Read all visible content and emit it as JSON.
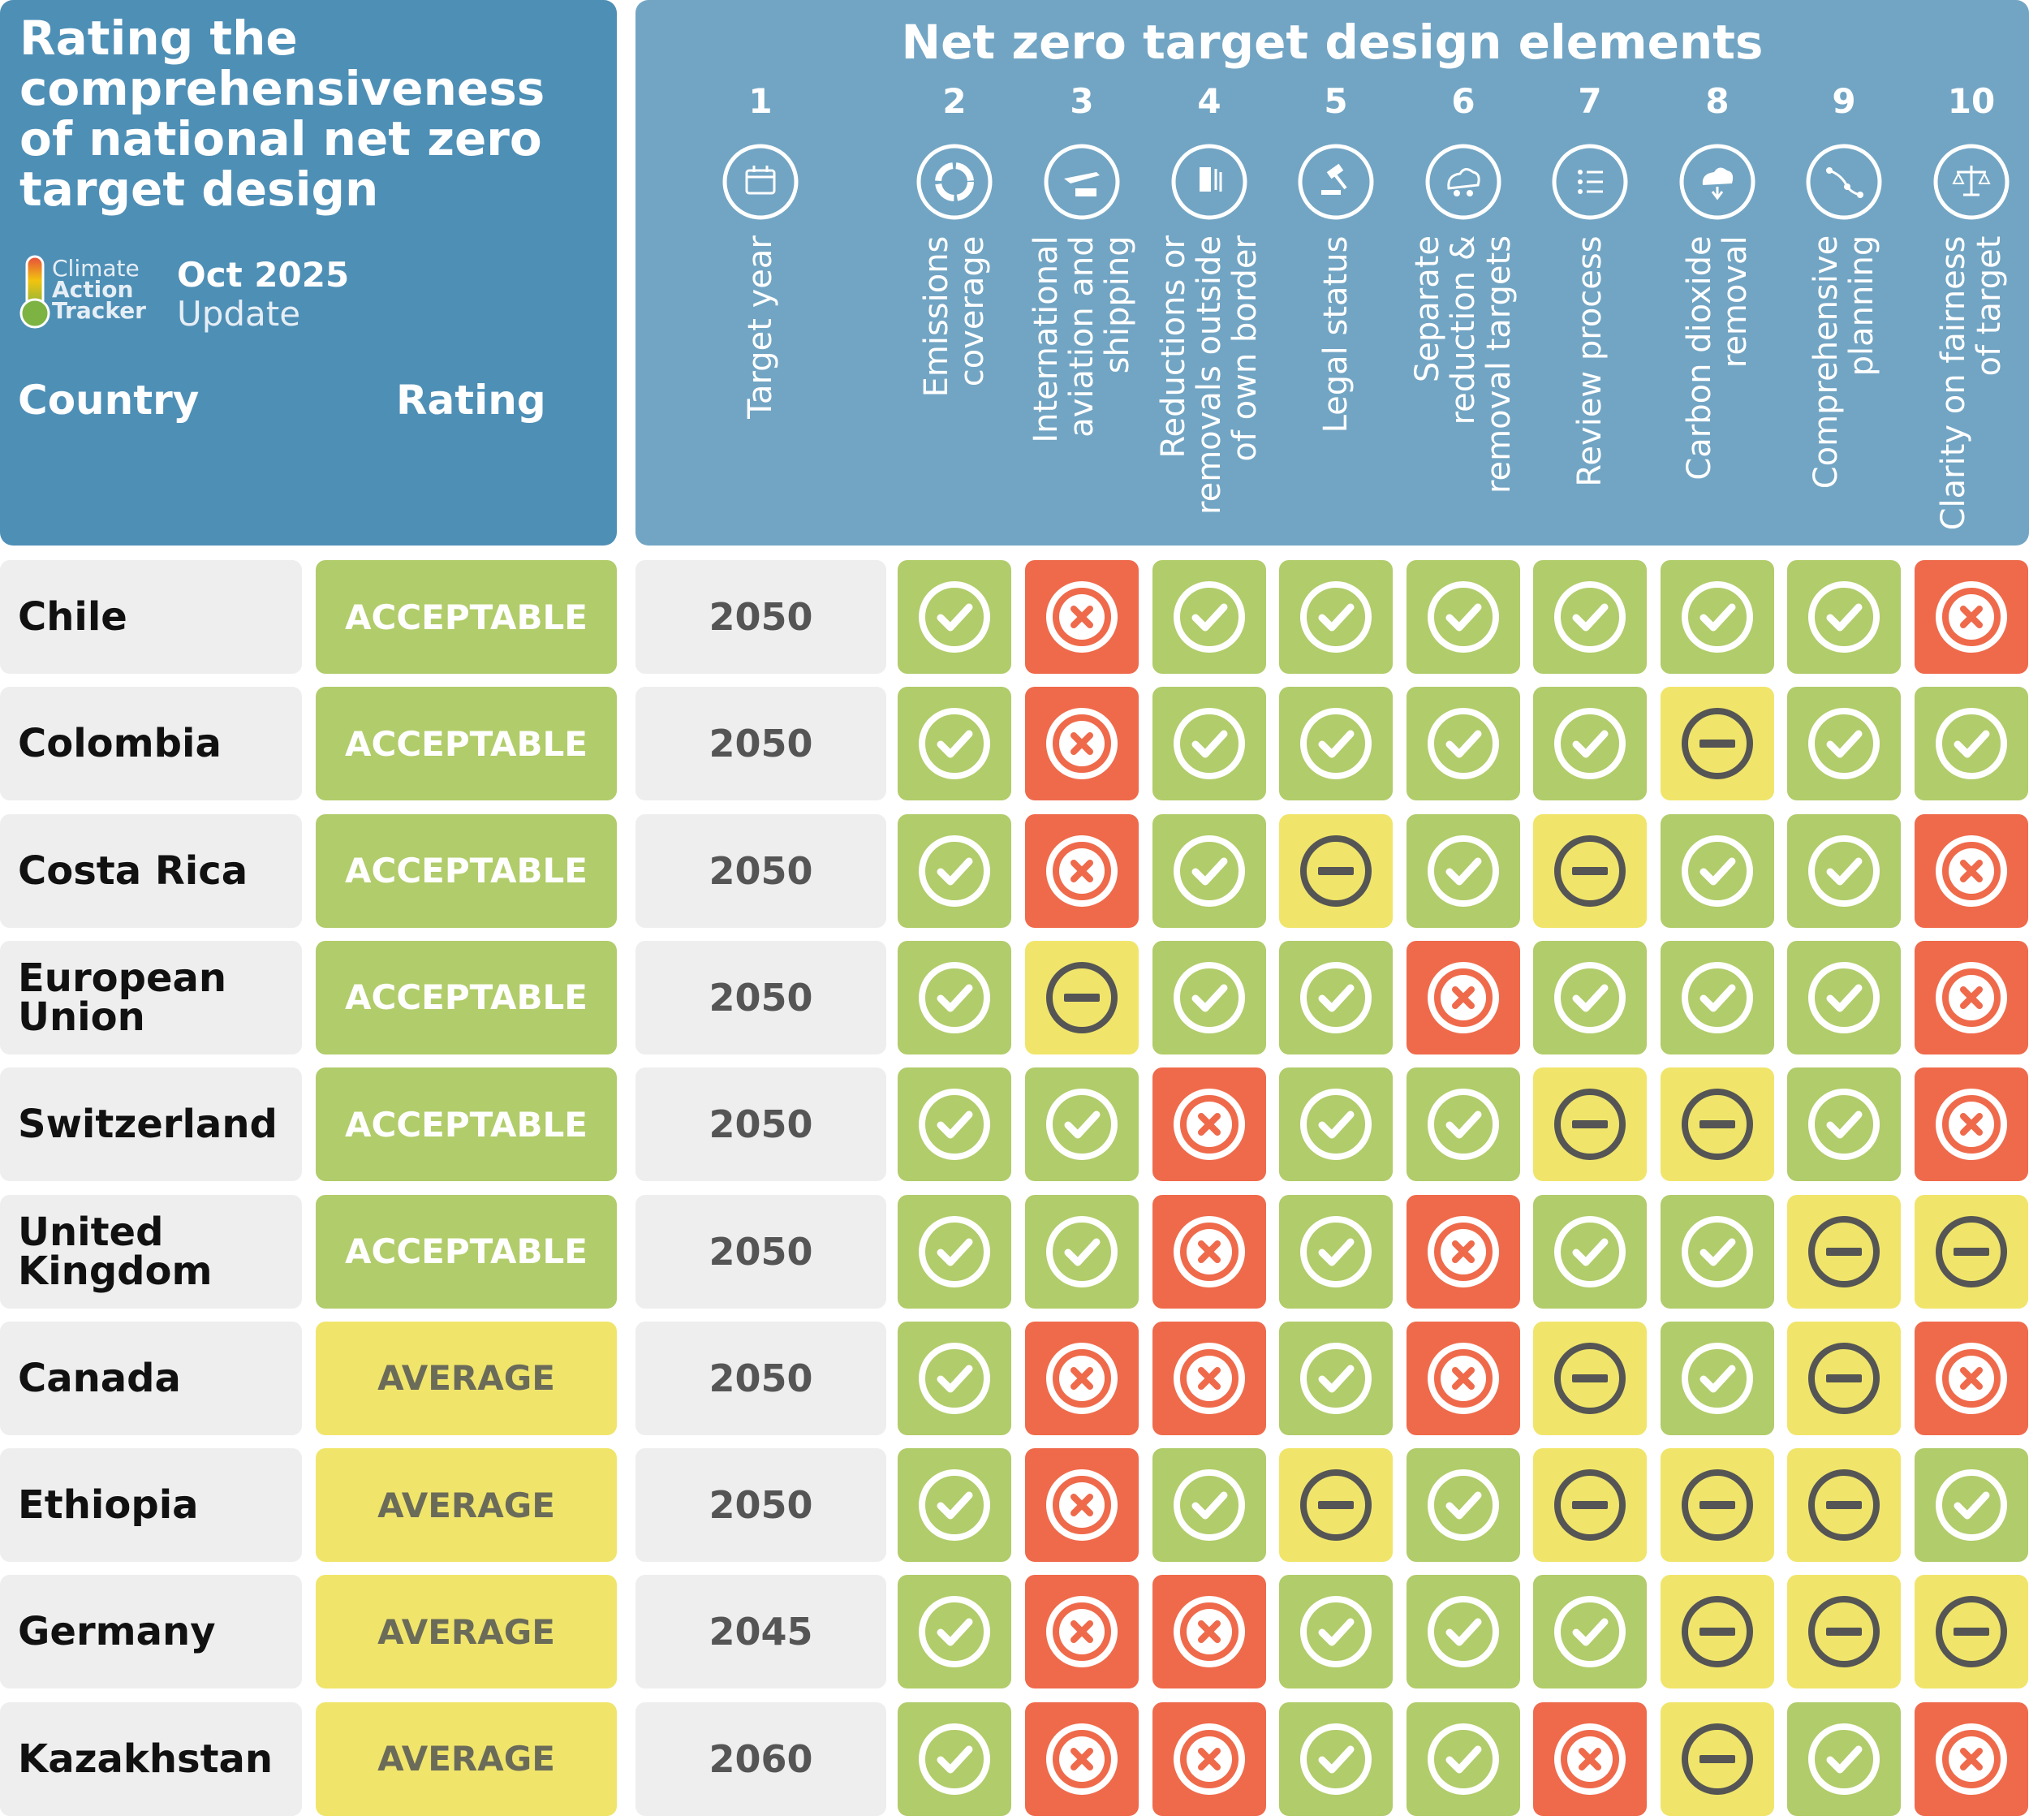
{
  "header": {
    "title": "Rating the comprehensiveness of national net zero target design",
    "brand_lines": [
      "Climate",
      "Action",
      "Tracker"
    ],
    "date_line1": "Oct 2025",
    "date_line2": "Update",
    "country_label": "Country",
    "rating_label": "Rating",
    "elements_title": "Net zero target design elements"
  },
  "colors": {
    "header_left": "#4e8fb6",
    "header_right": "#72a5c4",
    "good": "#b1cc6a",
    "medium": "#f0e56a",
    "bad": "#ef6a4b",
    "neutral": "#eeeeee"
  },
  "chart_data": {
    "type": "table",
    "title": "Rating the comprehensiveness of national net zero target design",
    "legend": {
      "good": "check",
      "medium": "dash",
      "bad": "cross"
    },
    "elements": [
      {
        "num": "1",
        "label": "Target year",
        "icon": "calendar-icon"
      },
      {
        "num": "2",
        "label": "Emissions coverage",
        "icon": "donut-chart-icon"
      },
      {
        "num": "3",
        "label": "International aviation and shipping",
        "icon": "plane-ship-icon"
      },
      {
        "num": "4",
        "label": "Reductions or removals outside of own border",
        "icon": "building-arrows-icon"
      },
      {
        "num": "5",
        "label": "Legal status",
        "icon": "gavel-icon"
      },
      {
        "num": "6",
        "label": "Separate reduction & removal targets",
        "icon": "ghg-cdr-cloud-icon"
      },
      {
        "num": "7",
        "label": "Review process",
        "icon": "review-list-icon"
      },
      {
        "num": "8",
        "label": "Carbon dioxide removal",
        "icon": "co2-cloud-icon"
      },
      {
        "num": "9",
        "label": "Comprehensive planning",
        "icon": "planning-path-icon"
      },
      {
        "num": "10",
        "label": "Clarity on fairness of target",
        "icon": "scales-icon"
      }
    ],
    "rows": [
      {
        "country": "Chile",
        "rating": "ACCEPTABLE",
        "target_year": "2050",
        "marks": [
          "good",
          "bad",
          "good",
          "good",
          "good",
          "good",
          "good",
          "good",
          "bad"
        ]
      },
      {
        "country": "Colombia",
        "rating": "ACCEPTABLE",
        "target_year": "2050",
        "marks": [
          "good",
          "bad",
          "good",
          "good",
          "good",
          "good",
          "medium",
          "good",
          "good"
        ]
      },
      {
        "country": "Costa Rica",
        "rating": "ACCEPTABLE",
        "target_year": "2050",
        "marks": [
          "good",
          "bad",
          "good",
          "medium",
          "good",
          "medium",
          "good",
          "good",
          "bad"
        ]
      },
      {
        "country": "European Union",
        "rating": "ACCEPTABLE",
        "target_year": "2050",
        "marks": [
          "good",
          "medium",
          "good",
          "good",
          "bad",
          "good",
          "good",
          "good",
          "bad"
        ]
      },
      {
        "country": "Switzerland",
        "rating": "ACCEPTABLE",
        "target_year": "2050",
        "marks": [
          "good",
          "good",
          "bad",
          "good",
          "good",
          "medium",
          "medium",
          "good",
          "bad"
        ]
      },
      {
        "country": "United Kingdom",
        "rating": "ACCEPTABLE",
        "target_year": "2050",
        "marks": [
          "good",
          "good",
          "bad",
          "good",
          "bad",
          "good",
          "good",
          "medium",
          "medium"
        ]
      },
      {
        "country": "Canada",
        "rating": "AVERAGE",
        "target_year": "2050",
        "marks": [
          "good",
          "bad",
          "bad",
          "good",
          "bad",
          "medium",
          "good",
          "medium",
          "bad"
        ]
      },
      {
        "country": "Ethiopia",
        "rating": "AVERAGE",
        "target_year": "2050",
        "marks": [
          "good",
          "bad",
          "good",
          "medium",
          "good",
          "medium",
          "medium",
          "medium",
          "good"
        ]
      },
      {
        "country": "Germany",
        "rating": "AVERAGE",
        "target_year": "2045",
        "marks": [
          "good",
          "bad",
          "bad",
          "good",
          "good",
          "good",
          "medium",
          "medium",
          "medium"
        ]
      },
      {
        "country": "Kazakhstan",
        "rating": "AVERAGE",
        "target_year": "2060",
        "marks": [
          "good",
          "bad",
          "bad",
          "good",
          "good",
          "bad",
          "medium",
          "good",
          "bad"
        ]
      }
    ]
  }
}
